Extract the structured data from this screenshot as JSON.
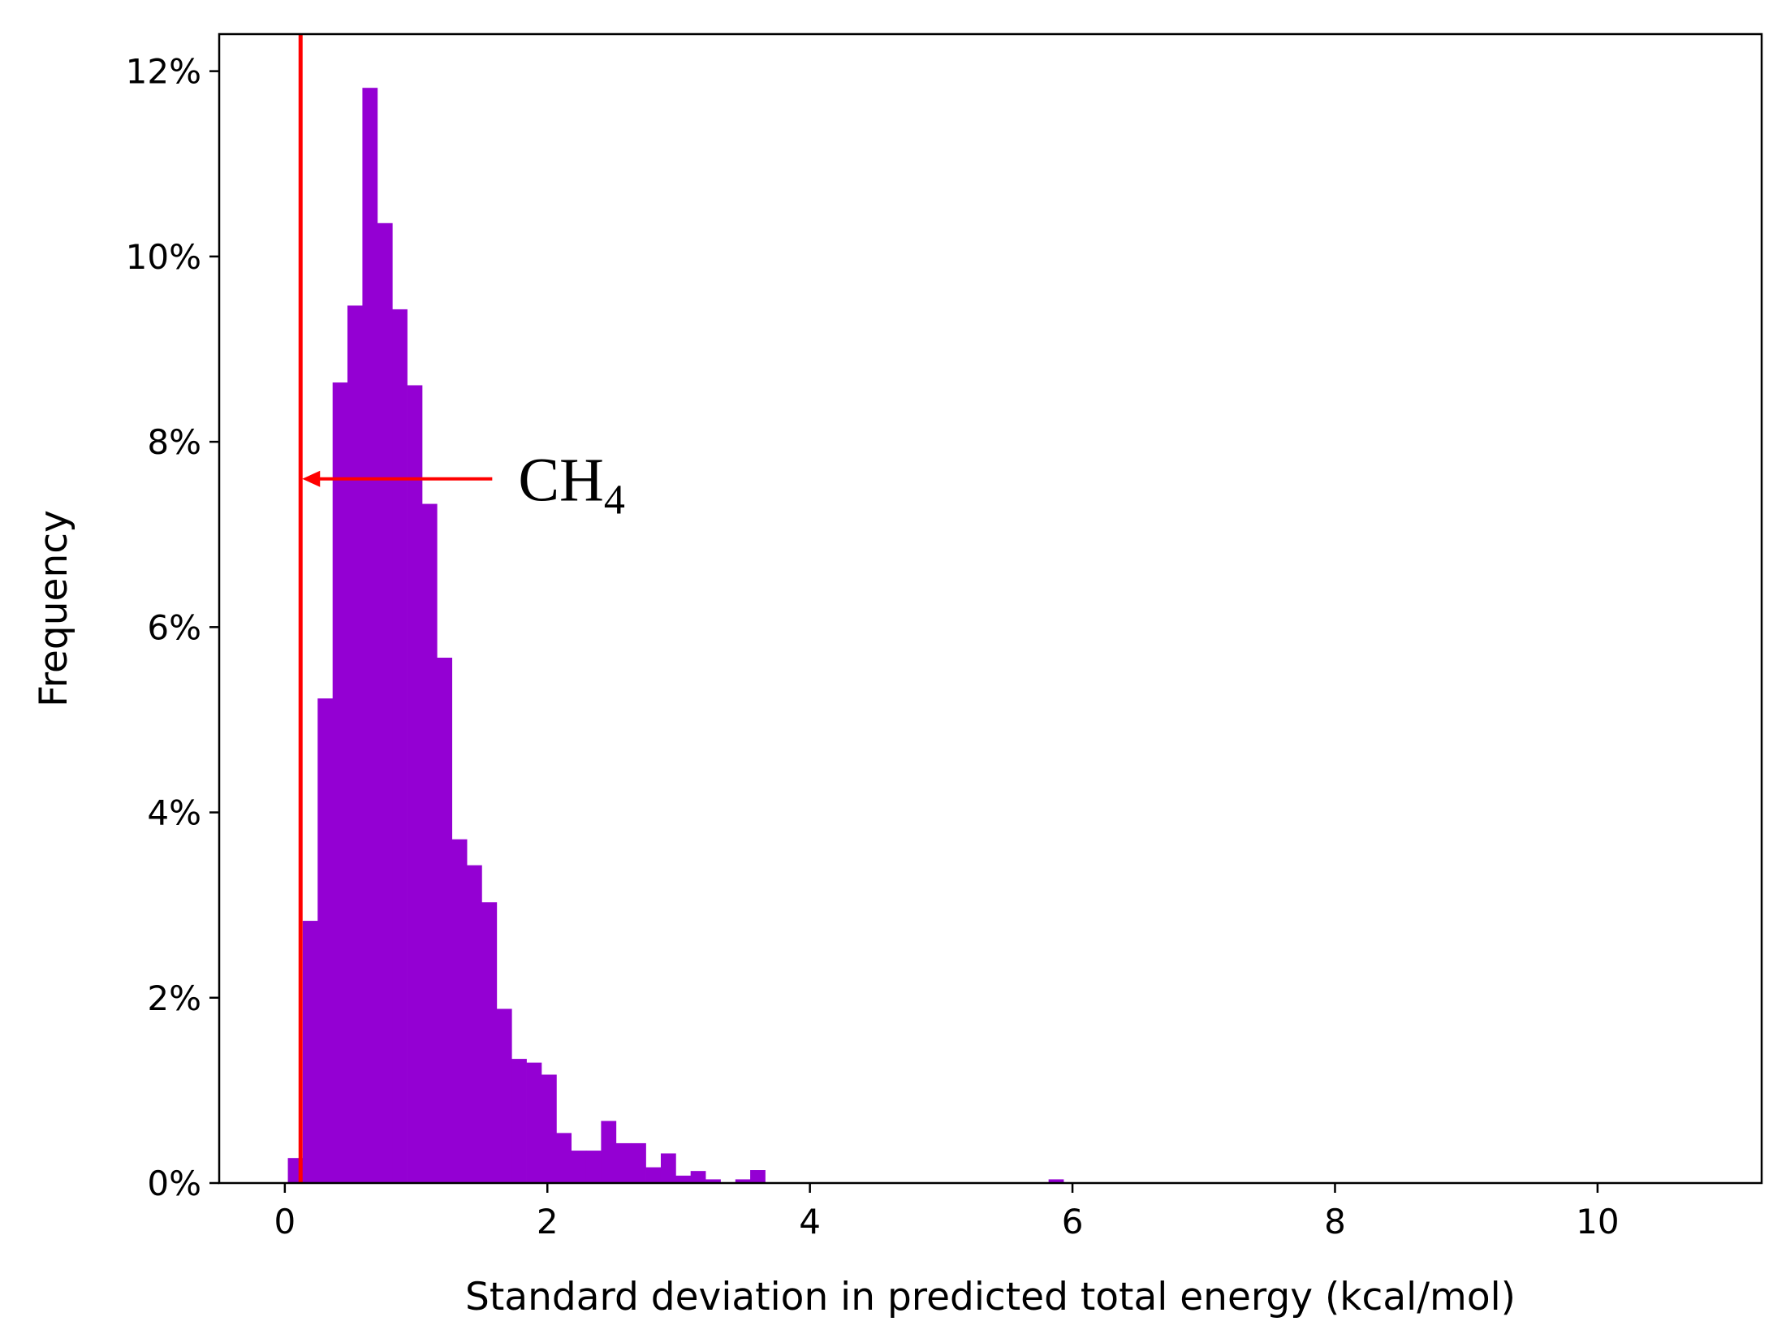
{
  "chart_data": {
    "type": "bar",
    "title": "",
    "xlabel": "Standard deviation in predicted total energy (kcal/mol)",
    "ylabel": "Frequency",
    "xlim": [
      -0.5,
      11.25
    ],
    "ylim": [
      0,
      12.4
    ],
    "bin_width": 0.1136,
    "bar_color": "#9400d3",
    "x_ticks": [
      0,
      2,
      4,
      6,
      8,
      10
    ],
    "x_tick_labels": [
      "0",
      "2",
      "4",
      "6",
      "8",
      "10"
    ],
    "y_ticks": [
      0,
      2,
      4,
      6,
      8,
      10,
      12
    ],
    "y_tick_labels": [
      "0%",
      "2%",
      "4%",
      "6%",
      "8%",
      "10%",
      "12%"
    ],
    "grid": false,
    "bins": [
      {
        "x": 0.023,
        "y": 0.27
      },
      {
        "x": 0.136,
        "y": 2.83
      },
      {
        "x": 0.25,
        "y": 5.23
      },
      {
        "x": 0.364,
        "y": 8.64
      },
      {
        "x": 0.477,
        "y": 9.47
      },
      {
        "x": 0.591,
        "y": 11.82
      },
      {
        "x": 0.705,
        "y": 10.36
      },
      {
        "x": 0.818,
        "y": 9.43
      },
      {
        "x": 0.932,
        "y": 8.61
      },
      {
        "x": 1.045,
        "y": 7.33
      },
      {
        "x": 1.159,
        "y": 5.67
      },
      {
        "x": 1.273,
        "y": 3.71
      },
      {
        "x": 1.386,
        "y": 3.43
      },
      {
        "x": 1.5,
        "y": 3.03
      },
      {
        "x": 1.614,
        "y": 1.88
      },
      {
        "x": 1.727,
        "y": 1.34
      },
      {
        "x": 1.841,
        "y": 1.3
      },
      {
        "x": 1.955,
        "y": 1.17
      },
      {
        "x": 2.068,
        "y": 0.54
      },
      {
        "x": 2.182,
        "y": 0.35
      },
      {
        "x": 2.295,
        "y": 0.35
      },
      {
        "x": 2.409,
        "y": 0.67
      },
      {
        "x": 2.523,
        "y": 0.43
      },
      {
        "x": 2.636,
        "y": 0.43
      },
      {
        "x": 2.75,
        "y": 0.17
      },
      {
        "x": 2.864,
        "y": 0.32
      },
      {
        "x": 2.977,
        "y": 0.08
      },
      {
        "x": 3.091,
        "y": 0.13
      },
      {
        "x": 3.205,
        "y": 0.04
      },
      {
        "x": 3.432,
        "y": 0.04
      },
      {
        "x": 3.545,
        "y": 0.14
      },
      {
        "x": 5.818,
        "y": 0.04
      }
    ],
    "reference_line": {
      "x": 0.12,
      "color": "#ff0000"
    },
    "annotation": {
      "text": "CH",
      "subscript": "4",
      "arrow_from": {
        "x": 1.58,
        "y": 7.6
      },
      "arrow_to": {
        "x": 0.12,
        "y": 7.6
      },
      "color": "#ff0000"
    }
  }
}
